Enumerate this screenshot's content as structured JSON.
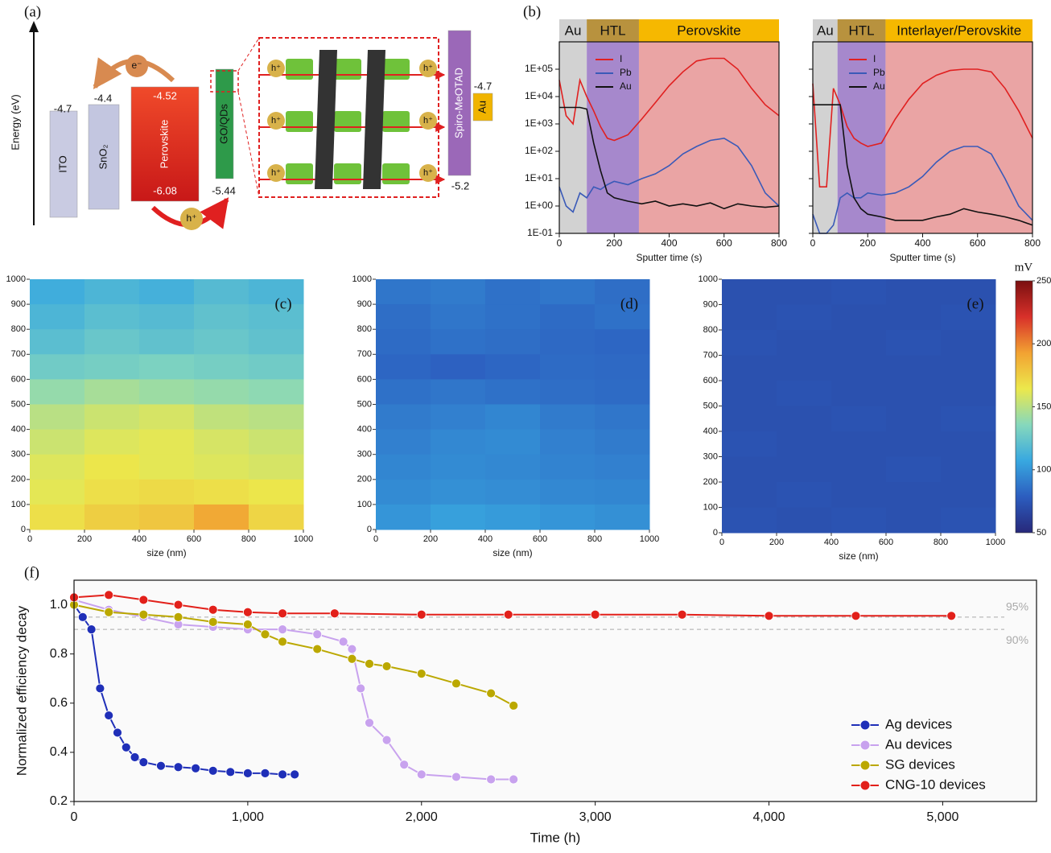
{
  "energy_diagram": {
    "panel_label": "(a)",
    "axis_label": "Energy (eV)",
    "electron": "e⁻",
    "hole": "h⁺",
    "layers": [
      {
        "name": "ITO",
        "levels": [
          -4.7
        ]
      },
      {
        "name": "SnO₂",
        "levels": [
          -4.4
        ]
      },
      {
        "name": "Perovskite",
        "levels": [
          -4.52,
          -6.08
        ]
      },
      {
        "name": "GO/QDs",
        "levels": [
          -5.44
        ]
      },
      {
        "name": "Spiro-MeOTAD",
        "levels": [
          -5.2
        ]
      },
      {
        "name": "Au",
        "levels": [
          -4.7
        ]
      }
    ]
  },
  "chart_data": [
    {
      "type": "line",
      "panel_label": "(b)",
      "log_y": true,
      "xlabel": "Sputter time (s)",
      "xlim": [
        0,
        800
      ],
      "xticks": [
        0,
        200,
        400,
        600,
        800
      ],
      "ylim": [
        0.1,
        1000000
      ],
      "yticks": [
        {
          "value": 0.1,
          "label": "1E-01"
        },
        {
          "value": 1,
          "label": "1E+00"
        },
        {
          "value": 10,
          "label": "1E+01"
        },
        {
          "value": 100,
          "label": "1E+02"
        },
        {
          "value": 1000,
          "label": "1E+03"
        },
        {
          "value": 10000,
          "label": "1E+04"
        },
        {
          "value": 100000,
          "label": "1E+05"
        }
      ],
      "ytick_labels": true,
      "legend": "upper-left",
      "regions": [
        {
          "label": "Au",
          "from": 0,
          "to": 100,
          "color": "#d2d2d2",
          "header_color": "#cfcfcf"
        },
        {
          "label": "HTL",
          "from": 100,
          "to": 290,
          "color": "#a688cc",
          "header_color": "#b8923e"
        },
        {
          "label": "Perovskite",
          "from": 290,
          "to": 800,
          "color": "#eaa4a4",
          "header_color": "#f6b800"
        }
      ],
      "x": [
        0,
        25,
        50,
        75,
        100,
        125,
        150,
        175,
        200,
        250,
        300,
        350,
        400,
        450,
        500,
        550,
        600,
        650,
        700,
        750,
        800
      ],
      "series": [
        {
          "name": "I",
          "color": "#e02020",
          "values": [
            40000,
            2000,
            1000,
            40000,
            10000,
            3000,
            800,
            300,
            250,
            400,
            1500,
            6000,
            25000,
            80000,
            200000,
            250000,
            250000,
            100000,
            20000,
            5000,
            2000
          ]
        },
        {
          "name": "Pb",
          "color": "#3a5ab8",
          "values": [
            5,
            1,
            0.6,
            3,
            2,
            5,
            4,
            6,
            8,
            6,
            10,
            15,
            30,
            80,
            150,
            250,
            300,
            150,
            30,
            3,
            1
          ]
        },
        {
          "name": "Au",
          "color": "#111111",
          "values": [
            4000,
            4000,
            4000,
            4000,
            3500,
            200,
            20,
            3,
            2,
            1.5,
            1.2,
            1.5,
            1,
            1.2,
            1,
            1.3,
            0.8,
            1.2,
            1,
            0.9,
            1
          ]
        }
      ]
    },
    {
      "type": "line",
      "log_y": true,
      "xlabel": "Sputter time (s)",
      "xlim": [
        0,
        800
      ],
      "xticks": [
        0,
        200,
        400,
        600,
        800
      ],
      "ylim": [
        0.1,
        1000000
      ],
      "yticks": [
        0.1,
        1,
        10,
        100,
        1000,
        10000,
        100000
      ],
      "ytick_labels": false,
      "legend": "upper-left",
      "regions": [
        {
          "label": "Au",
          "from": 0,
          "to": 90,
          "color": "#d2d2d2",
          "header_color": "#cfcfcf"
        },
        {
          "label": "HTL",
          "from": 90,
          "to": 265,
          "color": "#a688cc",
          "header_color": "#b8923e"
        },
        {
          "label": "Interlayer/Perovskite",
          "from": 265,
          "to": 800,
          "color": "#eaa4a4",
          "header_color": "#f6b800"
        }
      ],
      "x": [
        0,
        25,
        50,
        75,
        100,
        125,
        150,
        175,
        200,
        250,
        300,
        350,
        400,
        450,
        500,
        550,
        600,
        650,
        700,
        750,
        800
      ],
      "series": [
        {
          "name": "I",
          "color": "#e02020",
          "values": [
            30000,
            5,
            5,
            20000,
            5000,
            800,
            300,
            200,
            150,
            200,
            1500,
            8000,
            30000,
            60000,
            90000,
            100000,
            100000,
            80000,
            20000,
            3000,
            300
          ]
        },
        {
          "name": "Pb",
          "color": "#3a5ab8",
          "values": [
            0.5,
            0.1,
            0.1,
            0.2,
            2,
            3,
            2,
            2,
            3,
            2.5,
            3,
            5,
            12,
            40,
            100,
            150,
            150,
            80,
            10,
            1,
            0.3
          ]
        },
        {
          "name": "Au",
          "color": "#111111",
          "values": [
            5000,
            5000,
            5000,
            5000,
            5000,
            30,
            2,
            0.8,
            0.5,
            0.4,
            0.3,
            0.3,
            0.3,
            0.4,
            0.5,
            0.8,
            0.6,
            0.5,
            0.4,
            0.3,
            0.2
          ]
        }
      ]
    },
    {
      "type": "heatmap",
      "panel_label": "(c)",
      "xlabel": "size (nm)",
      "xlim": [
        0,
        1000
      ],
      "xticks": [
        0,
        200,
        400,
        600,
        800,
        1000
      ],
      "ylim": [
        0,
        1000
      ],
      "yticks": [
        0,
        100,
        200,
        300,
        400,
        500,
        600,
        700,
        800,
        900,
        1000
      ],
      "zlim": [
        50,
        250
      ],
      "colorscale": [
        "#27287a",
        "#2c5dbf",
        "#38a8e0",
        "#86d8bc",
        "#ece84c",
        "#f2a232",
        "#d8302a",
        "#7a1010"
      ],
      "z": [
        [
          110,
          115,
          112,
          118,
          115
        ],
        [
          115,
          120,
          118,
          122,
          120
        ],
        [
          120,
          125,
          122,
          125,
          122
        ],
        [
          128,
          130,
          132,
          130,
          128
        ],
        [
          140,
          145,
          142,
          140,
          138
        ],
        [
          150,
          155,
          158,
          152,
          150
        ],
        [
          155,
          160,
          162,
          158,
          155
        ],
        [
          160,
          165,
          162,
          160,
          158
        ],
        [
          162,
          168,
          170,
          168,
          165
        ],
        [
          168,
          175,
          178,
          190,
          172
        ]
      ]
    },
    {
      "type": "heatmap",
      "panel_label": "(d)",
      "xlabel": "size (nm)",
      "xlim": [
        0,
        1000
      ],
      "xticks": [
        0,
        200,
        400,
        600,
        800,
        1000
      ],
      "ylim": [
        0,
        1000
      ],
      "yticks": [
        0,
        100,
        200,
        300,
        400,
        500,
        600,
        700,
        800,
        900,
        1000
      ],
      "zlim": [
        50,
        250
      ],
      "colorscale": [
        "#27287a",
        "#2c5dbf",
        "#38a8e0",
        "#86d8bc",
        "#ece84c",
        "#f2a232",
        "#d8302a",
        "#7a1010"
      ],
      "z": [
        [
          88,
          90,
          86,
          88,
          85
        ],
        [
          85,
          88,
          86,
          84,
          86
        ],
        [
          84,
          86,
          85,
          83,
          82
        ],
        [
          82,
          80,
          82,
          84,
          83
        ],
        [
          86,
          88,
          86,
          85,
          84
        ],
        [
          90,
          92,
          94,
          90,
          88
        ],
        [
          92,
          95,
          96,
          92,
          90
        ],
        [
          94,
          96,
          95,
          93,
          92
        ],
        [
          96,
          98,
          97,
          95,
          94
        ],
        [
          100,
          104,
          102,
          100,
          98
        ]
      ]
    },
    {
      "type": "heatmap",
      "panel_label": "(e)",
      "xlabel": "size (nm)",
      "xlim": [
        0,
        1000
      ],
      "xticks": [
        0,
        200,
        400,
        600,
        800,
        1000
      ],
      "ylim": [
        0,
        1000
      ],
      "yticks": [
        0,
        100,
        200,
        300,
        400,
        500,
        600,
        700,
        800,
        900,
        1000
      ],
      "zlim": [
        50,
        250
      ],
      "zticks": [
        50,
        100,
        150,
        200,
        250
      ],
      "zlabel": "mV",
      "colorbar": true,
      "colorscale": [
        "#27287a",
        "#2c5dbf",
        "#38a8e0",
        "#86d8bc",
        "#ece84c",
        "#f2a232",
        "#d8302a",
        "#7a1010"
      ],
      "z": [
        [
          72,
          72,
          73,
          72,
          72
        ],
        [
          72,
          73,
          72,
          72,
          73
        ],
        [
          73,
          72,
          72,
          73,
          72
        ],
        [
          72,
          72,
          72,
          72,
          72
        ],
        [
          72,
          73,
          72,
          72,
          72
        ],
        [
          72,
          72,
          73,
          72,
          73
        ],
        [
          73,
          72,
          72,
          72,
          72
        ],
        [
          72,
          72,
          72,
          73,
          72
        ],
        [
          72,
          73,
          72,
          72,
          72
        ],
        [
          73,
          72,
          73,
          72,
          73
        ]
      ]
    },
    {
      "type": "line",
      "panel_label": "(f)",
      "markers": true,
      "xlabel": "Time (h)",
      "ylabel": "Normalized efficiency decay",
      "xlim": [
        0,
        5540
      ],
      "xticks": [
        0,
        {
          "value": 1000,
          "label": "1,000"
        },
        {
          "value": 2000,
          "label": "2,000"
        },
        {
          "value": 3000,
          "label": "3,000"
        },
        {
          "value": 4000,
          "label": "4,000"
        },
        {
          "value": 5000,
          "label": "5,000"
        }
      ],
      "ylim": [
        0.2,
        1.1
      ],
      "yticks": [
        0.2,
        0.4,
        0.6,
        0.8,
        {
          "value": 1,
          "label": "1.0"
        }
      ],
      "ytick_labels": true,
      "legend": "lower-right",
      "reference_lines": [
        {
          "value": 0.95,
          "label": "95%"
        },
        {
          "value": 0.9,
          "label": "90%"
        }
      ],
      "series": [
        {
          "name": "Ag devices",
          "color": "#1f2fb8",
          "x": [
            0,
            50,
            100,
            150,
            200,
            250,
            300,
            350,
            400,
            500,
            600,
            700,
            800,
            900,
            1000,
            1100,
            1200,
            1270
          ],
          "values": [
            1.0,
            0.95,
            0.9,
            0.66,
            0.55,
            0.48,
            0.42,
            0.38,
            0.36,
            0.345,
            0.34,
            0.335,
            0.325,
            0.32,
            0.315,
            0.315,
            0.31,
            0.31
          ]
        },
        {
          "name": "Au devices",
          "color": "#c8a2ee",
          "x": [
            0,
            200,
            400,
            600,
            800,
            1000,
            1200,
            1400,
            1550,
            1600,
            1650,
            1700,
            1800,
            1900,
            2000,
            2200,
            2400,
            2530
          ],
          "values": [
            1.02,
            0.98,
            0.95,
            0.92,
            0.91,
            0.9,
            0.9,
            0.88,
            0.85,
            0.82,
            0.66,
            0.52,
            0.45,
            0.35,
            0.31,
            0.3,
            0.29,
            0.29
          ]
        },
        {
          "name": "SG devices",
          "color": "#bba800",
          "x": [
            0,
            200,
            400,
            600,
            800,
            1000,
            1100,
            1200,
            1400,
            1600,
            1700,
            1800,
            2000,
            2200,
            2400,
            2530
          ],
          "values": [
            1.0,
            0.97,
            0.96,
            0.95,
            0.93,
            0.92,
            0.88,
            0.85,
            0.82,
            0.78,
            0.76,
            0.75,
            0.72,
            0.68,
            0.64,
            0.59
          ]
        },
        {
          "name": "CNG-10 devices",
          "color": "#e2201a",
          "x": [
            0,
            200,
            400,
            600,
            800,
            1000,
            1200,
            1500,
            2000,
            2500,
            3000,
            3500,
            4000,
            4500,
            5050
          ],
          "values": [
            1.03,
            1.04,
            1.02,
            1.0,
            0.98,
            0.97,
            0.965,
            0.965,
            0.96,
            0.96,
            0.96,
            0.96,
            0.955,
            0.955,
            0.955
          ]
        }
      ]
    }
  ]
}
